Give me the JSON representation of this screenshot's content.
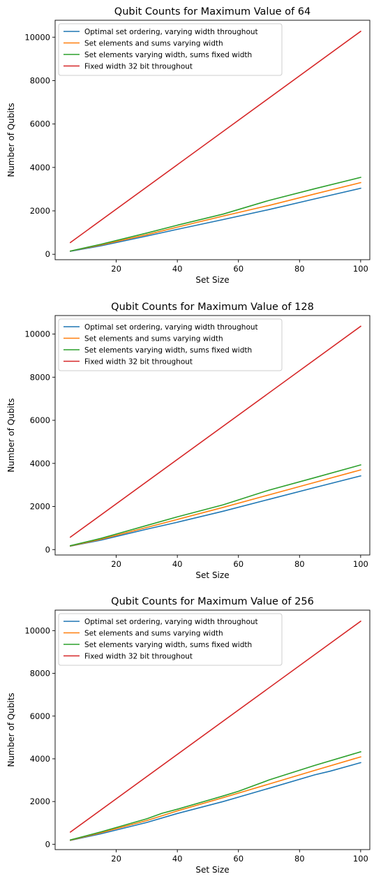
{
  "chart_data": [
    {
      "type": "line",
      "title": "Qubit Counts for Maximum Value of 64",
      "xlabel": "Set Size",
      "ylabel": "Number of Qubits",
      "xlim": [
        0,
        103
      ],
      "ylim": [
        -250,
        10780
      ],
      "xticks": [
        20,
        40,
        60,
        80,
        100
      ],
      "yticks": [
        0,
        2000,
        4000,
        6000,
        8000,
        10000
      ],
      "legend_position": "upper-left",
      "series": [
        {
          "name": "Optimal set ordering, varying width throughout",
          "color": "#1f77b4",
          "x": [
            5,
            15,
            30,
            40,
            55,
            70,
            85,
            100
          ],
          "y": [
            140,
            390,
            840,
            1150,
            1600,
            2060,
            2550,
            3040
          ]
        },
        {
          "name": "Set elements and sums varying width",
          "color": "#ff7f0e",
          "x": [
            5,
            15,
            30,
            40,
            55,
            70,
            85,
            100
          ],
          "y": [
            150,
            430,
            900,
            1250,
            1760,
            2250,
            2780,
            3300
          ]
        },
        {
          "name": "Set elements varying width, sums fixed width",
          "color": "#2ca02c",
          "x": [
            5,
            15,
            30,
            40,
            55,
            70,
            85,
            100
          ],
          "y": [
            150,
            460,
            980,
            1340,
            1850,
            2480,
            3020,
            3540
          ]
        },
        {
          "name": "Fixed width 32 bit throughout",
          "color": "#d62728",
          "x": [
            5,
            100
          ],
          "y": [
            540,
            10270
          ]
        }
      ]
    },
    {
      "type": "line",
      "title": "Qubit Counts for Maximum Value of 128",
      "xlabel": "Set Size",
      "ylabel": "Number of Qubits",
      "xlim": [
        0,
        103
      ],
      "ylim": [
        -250,
        10860
      ],
      "xticks": [
        20,
        40,
        60,
        80,
        100
      ],
      "yticks": [
        0,
        2000,
        4000,
        6000,
        8000,
        10000
      ],
      "legend_position": "upper-left",
      "series": [
        {
          "name": "Optimal set ordering, varying width throughout",
          "color": "#1f77b4",
          "x": [
            5,
            15,
            30,
            40,
            55,
            70,
            85,
            100
          ],
          "y": [
            160,
            440,
            950,
            1270,
            1780,
            2330,
            2880,
            3420
          ]
        },
        {
          "name": "Set elements and sums varying width",
          "color": "#ff7f0e",
          "x": [
            5,
            15,
            30,
            40,
            55,
            70,
            85,
            100
          ],
          "y": [
            170,
            480,
            1030,
            1400,
            1960,
            2540,
            3120,
            3700
          ]
        },
        {
          "name": "Set elements varying width, sums fixed width",
          "color": "#2ca02c",
          "x": [
            5,
            15,
            30,
            40,
            55,
            70,
            85,
            100
          ],
          "y": [
            180,
            520,
            1120,
            1520,
            2080,
            2760,
            3340,
            3930
          ]
        },
        {
          "name": "Fixed width 32 bit throughout",
          "color": "#d62728",
          "x": [
            5,
            100
          ],
          "y": [
            580,
            10360
          ]
        }
      ]
    },
    {
      "type": "line",
      "title": "Qubit Counts for Maximum Value of 256",
      "xlabel": "Set Size",
      "ylabel": "Number of Qubits",
      "xlim": [
        0,
        103
      ],
      "ylim": [
        -250,
        10960
      ],
      "xticks": [
        20,
        40,
        60,
        80,
        100
      ],
      "yticks": [
        0,
        2000,
        4000,
        6000,
        8000,
        10000
      ],
      "legend_position": "upper-left",
      "series": [
        {
          "name": "Optimal set ordering, varying width throughout",
          "color": "#1f77b4",
          "x": [
            5,
            15,
            30,
            40,
            55,
            70,
            85,
            90,
            100
          ],
          "y": [
            180,
            490,
            1020,
            1440,
            2000,
            2620,
            3250,
            3420,
            3820
          ]
        },
        {
          "name": "Set elements and sums varying width",
          "color": "#ff7f0e",
          "x": [
            5,
            15,
            30,
            40,
            55,
            70,
            85,
            100
          ],
          "y": [
            190,
            540,
            1110,
            1560,
            2180,
            2820,
            3460,
            4090
          ]
        },
        {
          "name": "Set elements varying width, sums fixed width",
          "color": "#2ca02c",
          "x": [
            5,
            15,
            30,
            35,
            40,
            55,
            60,
            70,
            85,
            100
          ],
          "y": [
            200,
            580,
            1190,
            1450,
            1640,
            2260,
            2480,
            3010,
            3690,
            4330
          ]
        },
        {
          "name": "Fixed width 32 bit throughout",
          "color": "#d62728",
          "x": [
            5,
            100
          ],
          "y": [
            570,
            10440
          ]
        }
      ]
    }
  ]
}
